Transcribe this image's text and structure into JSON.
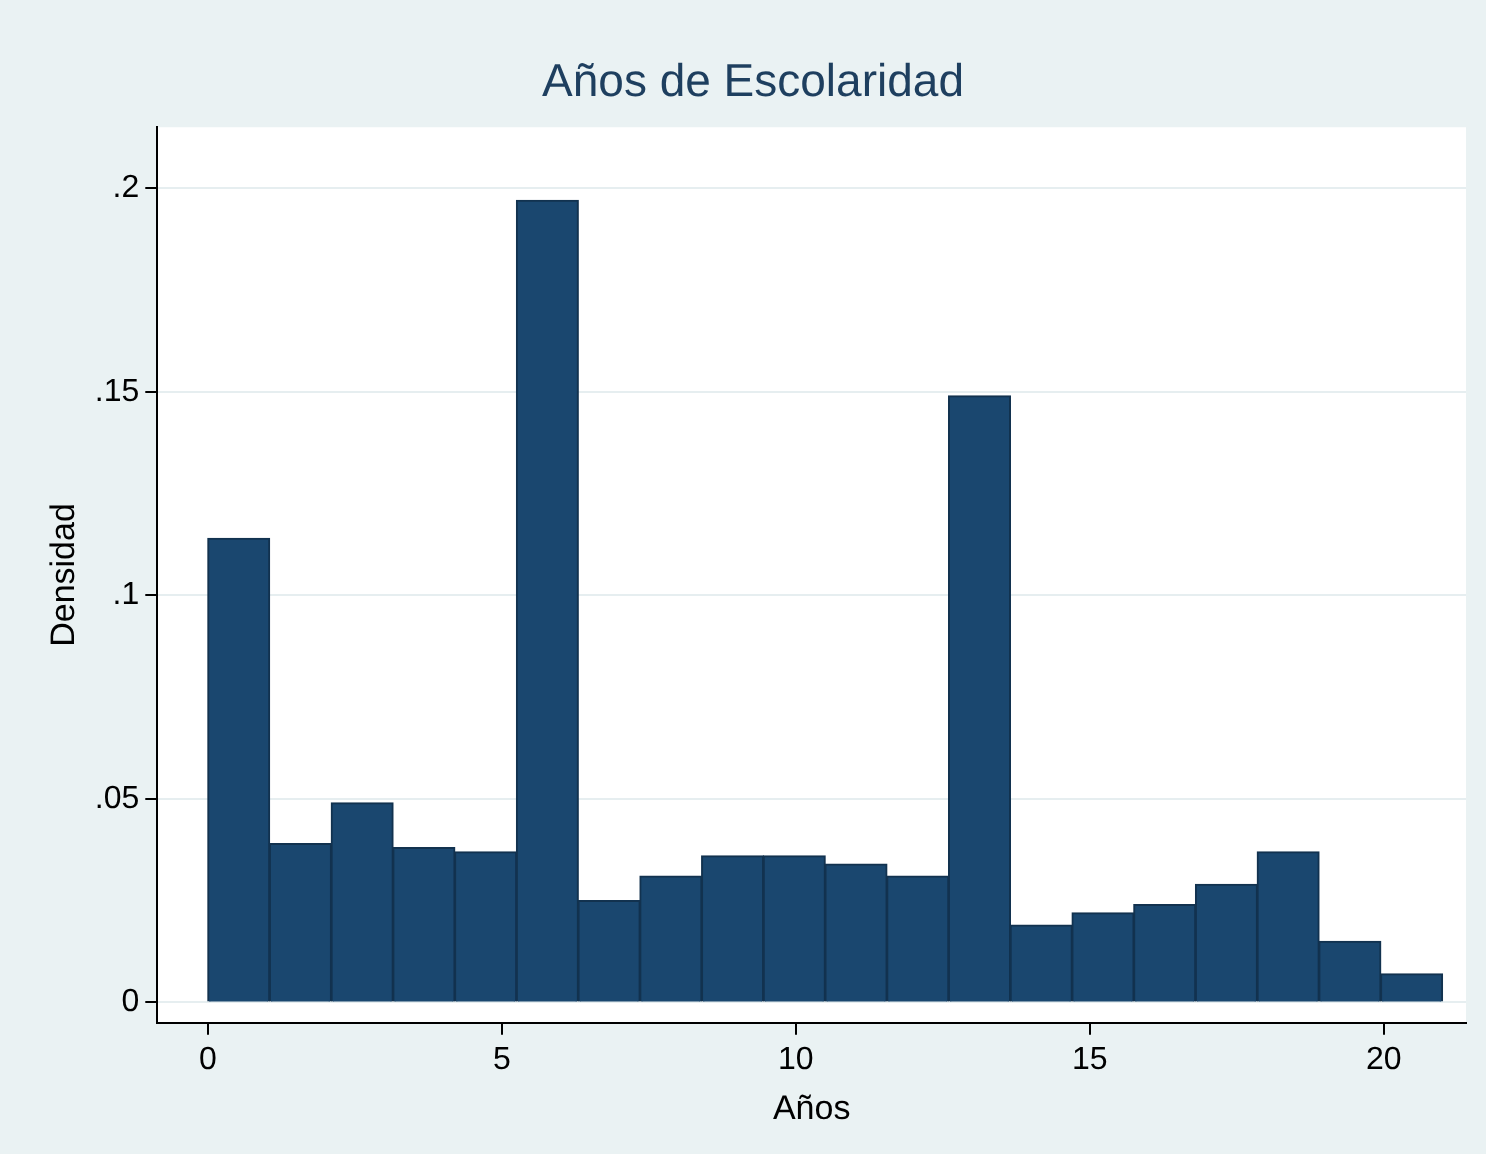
{
  "chart_data": {
    "type": "histogram",
    "title": "Años de Escolaridad",
    "xlabel": "Años",
    "ylabel": "Densidad",
    "bins": [
      0,
      1.05,
      2.1,
      3.15,
      4.2,
      5.25,
      6.3,
      7.35,
      8.4,
      9.45,
      10.5,
      11.55,
      12.6,
      13.65,
      14.7,
      15.75,
      16.8,
      17.85,
      18.9,
      19.95,
      21
    ],
    "values": [
      0.114,
      0.039,
      0.049,
      0.038,
      0.037,
      0.197,
      0.025,
      0.031,
      0.036,
      0.036,
      0.034,
      0.031,
      0.149,
      0.019,
      0.022,
      0.024,
      0.029,
      0.037,
      0.015,
      0.007
    ],
    "color": "#1a476f",
    "xlim": [
      -0.86,
      21.4
    ],
    "xticks": [
      0,
      5,
      10,
      15,
      20
    ],
    "ylim": [
      -0.005,
      0.215
    ],
    "yticks": [
      {
        "value": 0,
        "label": "0"
      },
      {
        "value": 0.05,
        "label": ".05"
      },
      {
        "value": 0.1,
        "label": ".1"
      },
      {
        "value": 0.15,
        "label": ".15"
      },
      {
        "value": 0.2,
        "label": ".2"
      }
    ],
    "grid": "y",
    "legend": false
  }
}
